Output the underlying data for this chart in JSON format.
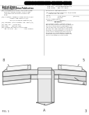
{
  "bg_color": "#ffffff",
  "lc": "#666666",
  "face_top": "#f0f0f0",
  "face_front": "#dcdcdc",
  "face_side": "#e8e8e8",
  "face_dark": "#c8c8c8",
  "face_inner": "#f8f8f8",
  "label_color": "#333333",
  "barcode_color": "#000000",
  "header_text": "#444444",
  "divider": "#aaaaaa"
}
